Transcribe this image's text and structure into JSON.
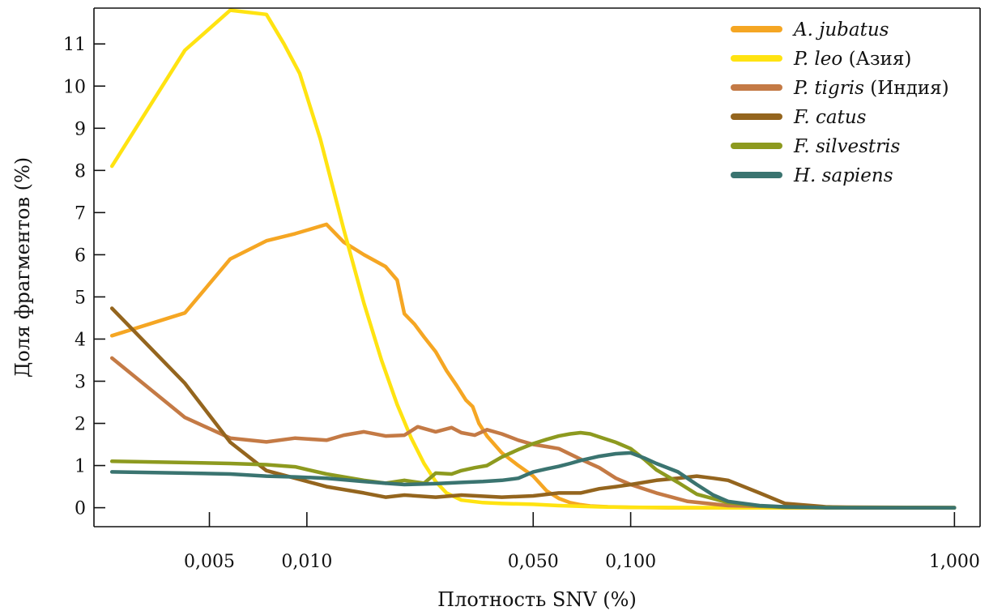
{
  "chart_data": {
    "type": "line",
    "xlabel": "Плотность SNV (%)",
    "ylabel": "Доля фрагментов (%)",
    "x_scale": "log",
    "xlim": [
      0.0022,
      1.2
    ],
    "ylim": [
      -0.45,
      11.85
    ],
    "x_ticks": [
      {
        "value": 0.005,
        "label": "0,005"
      },
      {
        "value": 0.01,
        "label": "0,010"
      },
      {
        "value": 0.05,
        "label": "0,050"
      },
      {
        "value": 0.1,
        "label": "0,100"
      },
      {
        "value": 1.0,
        "label": "1,000"
      }
    ],
    "y_ticks": [
      {
        "value": 0,
        "label": "0"
      },
      {
        "value": 1,
        "label": "1"
      },
      {
        "value": 2,
        "label": "2"
      },
      {
        "value": 3,
        "label": "3"
      },
      {
        "value": 4,
        "label": "4"
      },
      {
        "value": 5,
        "label": "5"
      },
      {
        "value": 6,
        "label": "6"
      },
      {
        "value": 7,
        "label": "7"
      },
      {
        "value": 8,
        "label": "8"
      },
      {
        "value": 9,
        "label": "9"
      },
      {
        "value": 10,
        "label": "10"
      },
      {
        "value": 11,
        "label": "11"
      }
    ],
    "grid": false,
    "legend_position": "top-right",
    "series": [
      {
        "name": "A. jubatus",
        "name_italic": "A. jubatus",
        "name_suffix": "",
        "color": "#F5A623",
        "x": [
          0.0025,
          0.0042,
          0.0058,
          0.0075,
          0.0092,
          0.0115,
          0.013,
          0.015,
          0.0175,
          0.019,
          0.02,
          0.0215,
          0.023,
          0.025,
          0.027,
          0.029,
          0.031,
          0.0325,
          0.034,
          0.036,
          0.04,
          0.045,
          0.05,
          0.055,
          0.06,
          0.065,
          0.07,
          0.075,
          0.085,
          0.1,
          0.13,
          0.2,
          0.4,
          1.0
        ],
        "y": [
          4.08,
          4.62,
          5.9,
          6.33,
          6.5,
          6.72,
          6.3,
          6.0,
          5.72,
          5.4,
          4.6,
          4.35,
          4.05,
          3.7,
          3.25,
          2.9,
          2.55,
          2.4,
          2.0,
          1.7,
          1.3,
          1.0,
          0.75,
          0.4,
          0.22,
          0.12,
          0.07,
          0.04,
          0.02,
          0.01,
          0.0,
          0.0,
          0.0,
          0.0
        ]
      },
      {
        "name": "P. leo (Азия)",
        "name_italic": "P. leo",
        "name_suffix": " (Азия)",
        "color": "#FFE311",
        "x": [
          0.0025,
          0.0042,
          0.0058,
          0.0075,
          0.0085,
          0.0095,
          0.011,
          0.013,
          0.015,
          0.017,
          0.019,
          0.021,
          0.023,
          0.025,
          0.027,
          0.03,
          0.035,
          0.04,
          0.05,
          0.06,
          0.08,
          0.1,
          0.2,
          0.5,
          1.0
        ],
        "y": [
          8.1,
          10.85,
          11.8,
          11.7,
          11.0,
          10.3,
          8.75,
          6.6,
          4.85,
          3.5,
          2.45,
          1.65,
          1.05,
          0.62,
          0.35,
          0.18,
          0.12,
          0.1,
          0.08,
          0.05,
          0.02,
          0.01,
          0.0,
          0.0,
          0.0
        ]
      },
      {
        "name": "P. tigris (Индия)",
        "name_italic": "P. tigris",
        "name_suffix": " (Индия)",
        "color": "#C47A45",
        "x": [
          0.0025,
          0.0042,
          0.0058,
          0.0075,
          0.0092,
          0.0115,
          0.013,
          0.015,
          0.0175,
          0.02,
          0.022,
          0.025,
          0.028,
          0.03,
          0.033,
          0.036,
          0.04,
          0.045,
          0.05,
          0.055,
          0.06,
          0.07,
          0.08,
          0.09,
          0.1,
          0.12,
          0.15,
          0.2,
          0.3,
          1.0
        ],
        "y": [
          3.55,
          2.14,
          1.65,
          1.56,
          1.65,
          1.6,
          1.72,
          1.8,
          1.7,
          1.72,
          1.92,
          1.8,
          1.9,
          1.78,
          1.72,
          1.85,
          1.75,
          1.6,
          1.5,
          1.45,
          1.4,
          1.15,
          0.95,
          0.7,
          0.55,
          0.35,
          0.15,
          0.05,
          0.02,
          0.0
        ]
      },
      {
        "name": "F. catus",
        "name_italic": "F. catus",
        "name_suffix": "",
        "color": "#94651E",
        "x": [
          0.0025,
          0.0042,
          0.0058,
          0.0075,
          0.0092,
          0.0115,
          0.015,
          0.0175,
          0.02,
          0.025,
          0.03,
          0.04,
          0.05,
          0.06,
          0.07,
          0.08,
          0.09,
          0.1,
          0.12,
          0.14,
          0.16,
          0.18,
          0.2,
          0.25,
          0.3,
          0.4,
          0.5,
          1.0
        ],
        "y": [
          4.73,
          2.95,
          1.55,
          0.88,
          0.7,
          0.5,
          0.35,
          0.25,
          0.3,
          0.25,
          0.3,
          0.25,
          0.28,
          0.35,
          0.35,
          0.45,
          0.5,
          0.55,
          0.65,
          0.7,
          0.75,
          0.7,
          0.65,
          0.35,
          0.1,
          0.02,
          0.0,
          0.0
        ]
      },
      {
        "name": "F. silvestris",
        "name_italic": "F. silvestris",
        "name_suffix": "",
        "color": "#8D9A1F",
        "x": [
          0.0025,
          0.0042,
          0.0058,
          0.0075,
          0.0092,
          0.0115,
          0.015,
          0.0175,
          0.02,
          0.023,
          0.025,
          0.028,
          0.03,
          0.033,
          0.036,
          0.04,
          0.045,
          0.05,
          0.055,
          0.06,
          0.065,
          0.07,
          0.075,
          0.08,
          0.09,
          0.1,
          0.11,
          0.12,
          0.14,
          0.16,
          0.2,
          0.25,
          0.3,
          1.0
        ],
        "y": [
          1.1,
          1.07,
          1.05,
          1.02,
          0.97,
          0.8,
          0.65,
          0.58,
          0.65,
          0.58,
          0.82,
          0.8,
          0.88,
          0.95,
          1.0,
          1.2,
          1.38,
          1.52,
          1.62,
          1.7,
          1.75,
          1.78,
          1.75,
          1.68,
          1.55,
          1.4,
          1.15,
          0.9,
          0.6,
          0.32,
          0.12,
          0.04,
          0.01,
          0.0
        ]
      },
      {
        "name": "H. sapiens",
        "name_italic": "H. sapiens",
        "name_suffix": "",
        "color": "#3A7470",
        "x": [
          0.0025,
          0.0042,
          0.0058,
          0.0075,
          0.0092,
          0.0115,
          0.015,
          0.0175,
          0.02,
          0.025,
          0.03,
          0.035,
          0.04,
          0.045,
          0.05,
          0.055,
          0.06,
          0.065,
          0.07,
          0.08,
          0.09,
          0.1,
          0.11,
          0.12,
          0.14,
          0.16,
          0.18,
          0.2,
          0.25,
          0.3,
          0.4,
          1.0
        ],
        "y": [
          0.85,
          0.82,
          0.8,
          0.75,
          0.73,
          0.7,
          0.62,
          0.58,
          0.55,
          0.57,
          0.6,
          0.62,
          0.65,
          0.7,
          0.85,
          0.92,
          0.98,
          1.05,
          1.12,
          1.22,
          1.28,
          1.3,
          1.18,
          1.05,
          0.85,
          0.55,
          0.3,
          0.15,
          0.05,
          0.02,
          0.0,
          0.0
        ]
      }
    ]
  }
}
